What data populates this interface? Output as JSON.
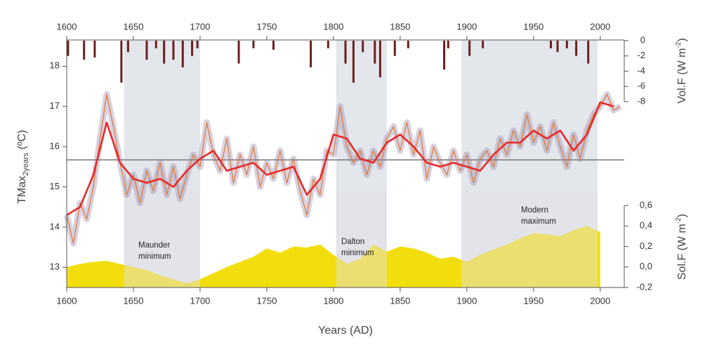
{
  "chart_data": {
    "type": "line",
    "xlabel": "Years (AD)",
    "ylabel": [
      "TMax",
      "2years",
      " (ºC)"
    ],
    "y2label": [
      "Vol.F (W m",
      "-2",
      ")"
    ],
    "y3label": [
      "Sol.F (W m",
      "-2",
      ")"
    ],
    "xlim": [
      1600,
      2018
    ],
    "xticks": [
      1600,
      1650,
      1700,
      1750,
      1800,
      1850,
      1900,
      1950,
      2000
    ],
    "ylim": [
      12.5,
      18.65
    ],
    "yticks": [
      13,
      14,
      15,
      16,
      17,
      18
    ],
    "y2lim": [
      0,
      -8
    ],
    "y2ticks": [
      0,
      -2,
      -4,
      -6,
      -8
    ],
    "y3lim": [
      -0.2,
      0.6
    ],
    "y3ticks": [
      {
        "value": -0.2,
        "label": "-0,2"
      },
      {
        "value": 0.0,
        "label": "0,0"
      },
      {
        "value": 0.2,
        "label": "0,2"
      },
      {
        "value": 0.4,
        "label": "0,4"
      },
      {
        "value": 0.6,
        "label": "0,6"
      }
    ],
    "mean": 15.67,
    "periods": [
      {
        "x": [
          1643,
          1700
        ],
        "label": [
          "Maunder",
          "minimum"
        ]
      },
      {
        "x": [
          1802,
          1840
        ],
        "label": [
          "Dalton",
          "minimum"
        ]
      },
      {
        "x": [
          1896,
          1998
        ],
        "label": [
          "Modern",
          "maximum"
        ]
      }
    ],
    "series": [
      {
        "kind": "band-line",
        "color": "#e07b39",
        "band_color": "#8e7fa8",
        "x": [
          1600,
          1605,
          1610,
          1615,
          1620,
          1625,
          1630,
          1635,
          1640,
          1645,
          1650,
          1655,
          1660,
          1665,
          1670,
          1675,
          1680,
          1685,
          1690,
          1695,
          1700,
          1705,
          1710,
          1715,
          1720,
          1725,
          1730,
          1735,
          1740,
          1745,
          1750,
          1755,
          1760,
          1765,
          1770,
          1775,
          1780,
          1785,
          1790,
          1795,
          1800,
          1805,
          1810,
          1815,
          1820,
          1825,
          1830,
          1835,
          1840,
          1845,
          1850,
          1855,
          1860,
          1865,
          1870,
          1875,
          1880,
          1885,
          1890,
          1895,
          1900,
          1905,
          1910,
          1915,
          1920,
          1925,
          1930,
          1935,
          1940,
          1945,
          1950,
          1955,
          1960,
          1965,
          1970,
          1975,
          1980,
          1985,
          1990,
          1995,
          2000,
          2005,
          2010,
          2015
        ],
        "values": [
          14.3,
          13.6,
          14.6,
          14.2,
          15.0,
          16.2,
          17.3,
          16.5,
          15.6,
          14.8,
          15.3,
          14.6,
          15.4,
          14.9,
          15.6,
          14.8,
          15.5,
          14.7,
          15.3,
          15.8,
          15.5,
          16.6,
          15.8,
          15.4,
          16.2,
          15.1,
          15.8,
          15.3,
          16.0,
          15.0,
          15.6,
          15.2,
          15.9,
          15.1,
          15.7,
          14.9,
          14.3,
          15.2,
          14.8,
          15.9,
          15.8,
          17.0,
          16.0,
          15.6,
          15.9,
          15.3,
          15.9,
          15.5,
          16.2,
          16.5,
          15.9,
          16.6,
          15.8,
          16.4,
          15.2,
          16.0,
          15.6,
          15.3,
          15.9,
          15.4,
          15.8,
          15.1,
          15.7,
          15.9,
          15.5,
          16.2,
          15.8,
          16.4,
          16.0,
          16.8,
          16.1,
          16.5,
          15.9,
          16.6,
          16.0,
          15.5,
          16.3,
          15.7,
          16.4,
          16.8,
          17.0,
          17.3,
          16.9,
          17.0
        ]
      },
      {
        "kind": "line",
        "color": "#e62a2a",
        "x": [
          1600,
          1610,
          1620,
          1630,
          1640,
          1650,
          1660,
          1670,
          1680,
          1690,
          1700,
          1710,
          1720,
          1730,
          1740,
          1750,
          1760,
          1770,
          1780,
          1790,
          1800,
          1810,
          1820,
          1830,
          1840,
          1850,
          1860,
          1870,
          1880,
          1890,
          1900,
          1910,
          1920,
          1930,
          1940,
          1950,
          1960,
          1970,
          1980,
          1990,
          2000,
          2010
        ],
        "values": [
          14.3,
          14.5,
          15.3,
          16.6,
          15.6,
          15.2,
          15.1,
          15.2,
          15.0,
          15.4,
          15.7,
          15.9,
          15.4,
          15.5,
          15.6,
          15.3,
          15.4,
          15.5,
          14.8,
          15.2,
          16.3,
          16.2,
          15.7,
          15.6,
          16.1,
          16.3,
          16.0,
          15.6,
          15.5,
          15.6,
          15.5,
          15.4,
          15.8,
          16.1,
          16.1,
          16.4,
          16.2,
          16.4,
          15.9,
          16.3,
          17.1,
          17.0
        ]
      },
      {
        "kind": "bar",
        "axis": "y2",
        "color": "#6b1f1c",
        "x": [
          1601,
          1613,
          1621,
          1641,
          1646,
          1660,
          1667,
          1673,
          1680,
          1687,
          1694,
          1698,
          1729,
          1740,
          1755,
          1783,
          1796,
          1809,
          1815,
          1822,
          1831,
          1835,
          1846,
          1856,
          1883,
          1886,
          1902,
          1912,
          1963,
          1968,
          1975,
          1982,
          1991
        ],
        "values": [
          -2.0,
          -2.5,
          -2.2,
          -5.5,
          -1.5,
          -2.5,
          -1.0,
          -3.0,
          -2.5,
          -3.5,
          -2.0,
          -1.0,
          -3.0,
          -1.0,
          -1.2,
          -3.5,
          -1.0,
          -3.0,
          -5.5,
          -1.5,
          -3.0,
          -4.8,
          -2.0,
          -1.0,
          -3.8,
          -1.0,
          -2.0,
          -1.0,
          -1.0,
          -1.5,
          -1.0,
          -2.0,
          -3.0
        ]
      },
      {
        "kind": "area",
        "axis": "y3",
        "color": "#f2dc00",
        "x": [
          1600,
          1610,
          1620,
          1630,
          1640,
          1650,
          1660,
          1670,
          1680,
          1690,
          1700,
          1710,
          1720,
          1730,
          1740,
          1750,
          1760,
          1770,
          1780,
          1790,
          1800,
          1810,
          1820,
          1830,
          1840,
          1850,
          1860,
          1870,
          1880,
          1890,
          1900,
          1910,
          1920,
          1930,
          1940,
          1950,
          1960,
          1970,
          1980,
          1990,
          2000
        ],
        "values": [
          0.0,
          0.03,
          0.05,
          0.06,
          0.03,
          0.0,
          -0.03,
          -0.08,
          -0.12,
          -0.16,
          -0.12,
          -0.06,
          0.0,
          0.05,
          0.1,
          0.18,
          0.14,
          0.2,
          0.19,
          0.22,
          0.12,
          0.03,
          0.08,
          0.22,
          0.15,
          0.2,
          0.18,
          0.14,
          0.08,
          0.1,
          0.05,
          0.12,
          0.17,
          0.22,
          0.28,
          0.33,
          0.32,
          0.3,
          0.36,
          0.4,
          0.34
        ]
      }
    ]
  }
}
